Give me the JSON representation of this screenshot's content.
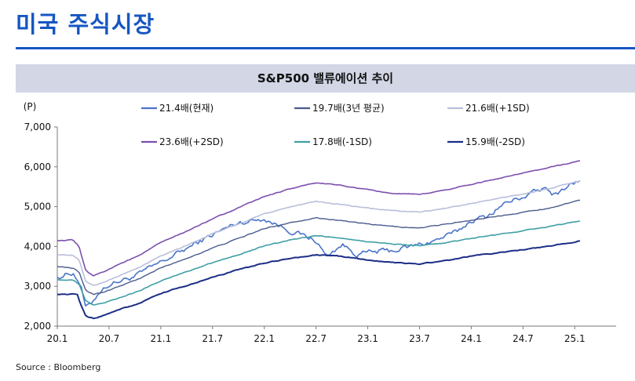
{
  "page": {
    "title": "미국 주식시장",
    "source": "Source : Bloomberg"
  },
  "chart_data": {
    "type": "line",
    "title": "S&P500 밸류에이션 추이",
    "ylabel": "(P)",
    "xlabel": "",
    "ylim": [
      2000,
      7000
    ],
    "yticks": [
      2000,
      3000,
      4000,
      5000,
      6000,
      7000
    ],
    "ytick_labels": [
      "2,000",
      "3,000",
      "4,000",
      "5,000",
      "6,000",
      "7,000"
    ],
    "x_categories": [
      "20.1",
      "20.7",
      "21.1",
      "21.7",
      "22.1",
      "22.7",
      "23.1",
      "23.7",
      "24.1",
      "24.7",
      "25.1"
    ],
    "x_range": [
      0,
      10.8
    ],
    "legend_placement": "top",
    "series": [
      {
        "name": "21.4배(현재)",
        "color": "#4a74c9",
        "width": 1.6,
        "noise": 110,
        "x": [
          0,
          0.3,
          0.45,
          0.55,
          0.65,
          0.8,
          1.0,
          1.5,
          2.0,
          2.5,
          3.0,
          3.5,
          4.0,
          4.5,
          5.0,
          5.2,
          5.5,
          5.8,
          6.0,
          6.5,
          7.0,
          7.3,
          7.7,
          8.0,
          8.3,
          8.6,
          9.0,
          9.4,
          9.6,
          9.9,
          10.1
        ],
        "y": [
          3230,
          3350,
          3050,
          2450,
          2550,
          2850,
          3050,
          3250,
          3600,
          3950,
          4300,
          4600,
          4700,
          4400,
          4150,
          3750,
          4050,
          3800,
          3850,
          3900,
          4050,
          4150,
          4350,
          4650,
          4750,
          5050,
          5250,
          5450,
          5300,
          5550,
          5650
        ]
      },
      {
        "name": "19.7배(3년 평균)",
        "color": "#4a5a8c",
        "width": 1.4,
        "noise": 18,
        "x": [
          0,
          0.3,
          0.42,
          0.55,
          0.7,
          0.9,
          1.2,
          1.6,
          2.0,
          2.5,
          3.0,
          3.5,
          4.0,
          4.5,
          5.0,
          5.5,
          6.0,
          6.5,
          7.0,
          7.5,
          8.0,
          8.5,
          9.0,
          9.5,
          10.1
        ],
        "y": [
          3500,
          3460,
          3350,
          2900,
          2800,
          2860,
          3000,
          3200,
          3460,
          3700,
          3960,
          4200,
          4450,
          4600,
          4720,
          4650,
          4560,
          4500,
          4460,
          4560,
          4660,
          4760,
          4860,
          4960,
          5160
        ]
      },
      {
        "name": "21.6배(+1SD)",
        "color": "#b9bfdb",
        "width": 1.6,
        "noise": 18,
        "x": [
          0,
          0.3,
          0.42,
          0.55,
          0.7,
          0.9,
          1.2,
          1.6,
          2.0,
          2.5,
          3.0,
          3.5,
          4.0,
          4.5,
          5.0,
          5.5,
          6.0,
          6.5,
          7.0,
          7.5,
          8.0,
          8.5,
          9.0,
          9.5,
          10.1
        ],
        "y": [
          3800,
          3780,
          3660,
          3120,
          3020,
          3100,
          3270,
          3480,
          3770,
          4030,
          4320,
          4560,
          4820,
          5000,
          5130,
          5050,
          4960,
          4900,
          4860,
          4960,
          5080,
          5200,
          5320,
          5450,
          5640
        ]
      },
      {
        "name": "23.6배(+2SD)",
        "color": "#7d4fae",
        "width": 1.6,
        "noise": 18,
        "x": [
          0,
          0.3,
          0.42,
          0.55,
          0.7,
          0.9,
          1.2,
          1.6,
          2.0,
          2.5,
          3.0,
          3.5,
          4.0,
          4.5,
          5.0,
          5.5,
          6.0,
          6.5,
          7.0,
          7.5,
          8.0,
          8.5,
          9.0,
          9.5,
          10.1
        ],
        "y": [
          4150,
          4160,
          4000,
          3380,
          3270,
          3370,
          3560,
          3780,
          4100,
          4380,
          4700,
          4970,
          5250,
          5450,
          5600,
          5530,
          5420,
          5330,
          5300,
          5420,
          5560,
          5700,
          5840,
          5980,
          6150
        ]
      },
      {
        "name": "17.8배(-1SD)",
        "color": "#3f9fa6",
        "width": 1.6,
        "noise": 18,
        "x": [
          0,
          0.3,
          0.42,
          0.55,
          0.7,
          0.9,
          1.2,
          1.6,
          2.0,
          2.5,
          3.0,
          3.5,
          4.0,
          4.5,
          5.0,
          5.5,
          6.0,
          6.5,
          7.0,
          7.5,
          8.0,
          8.5,
          9.0,
          9.5,
          10.1
        ],
        "y": [
          3170,
          3150,
          3050,
          2620,
          2530,
          2580,
          2710,
          2890,
          3140,
          3370,
          3590,
          3800,
          4010,
          4160,
          4270,
          4200,
          4120,
          4060,
          4020,
          4090,
          4200,
          4300,
          4400,
          4500,
          4640
        ]
      },
      {
        "name": "15.9배(-2SD)",
        "color": "#1b2e86",
        "width": 2,
        "noise": 18,
        "x": [
          0,
          0.3,
          0.4,
          0.42,
          0.55,
          0.7,
          0.9,
          1.2,
          1.6,
          2.0,
          2.5,
          3.0,
          3.5,
          4.0,
          4.5,
          5.0,
          5.5,
          6.0,
          6.5,
          7.0,
          7.5,
          8.0,
          8.5,
          9.0,
          9.5,
          10.1
        ],
        "y": [
          2800,
          2800,
          2790,
          2650,
          2250,
          2200,
          2270,
          2420,
          2580,
          2820,
          3020,
          3220,
          3420,
          3580,
          3700,
          3790,
          3750,
          3660,
          3600,
          3560,
          3640,
          3760,
          3840,
          3920,
          4000,
          4140
        ]
      }
    ]
  }
}
